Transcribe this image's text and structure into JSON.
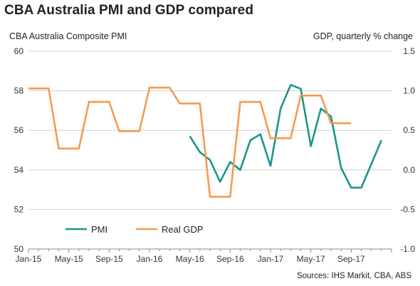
{
  "title": "CBA Australia PMI and GDP compared",
  "left_axis_label": "CBA Australia Composite  PMI",
  "right_axis_label": "GDP, quarterly % change",
  "source": "Sources: IHS Markit, CBA, ABS",
  "colors": {
    "pmi": "#1a968a",
    "gdp": "#f49b50",
    "grid": "#d0d0d0",
    "axis": "#888888"
  },
  "chart_data": {
    "type": "line",
    "x_tick_labels": [
      "Jan-15",
      "May-15",
      "Sep-15",
      "Jan-16",
      "May-16",
      "Sep-16",
      "Jan-17",
      "May-17",
      "Sep-17"
    ],
    "x_range": [
      "Jan-15",
      "Dec-17"
    ],
    "left_axis": {
      "ylim": [
        50,
        60
      ],
      "ticks": [
        "50",
        "52",
        "54",
        "56",
        "58",
        "60"
      ]
    },
    "right_axis": {
      "ylim": [
        -1.0,
        1.5
      ],
      "ticks": [
        "-1.0",
        "-0.5",
        "0.0",
        "0.5",
        "1.0",
        "1.5"
      ]
    },
    "grid": "horizontal",
    "legend_position": "bottom-left",
    "series": [
      {
        "name": "PMI",
        "axis": "left",
        "points": [
          [
            "May-16",
            55.7
          ],
          [
            "Jun-16",
            54.9
          ],
          [
            "Jul-16",
            54.5
          ],
          [
            "Aug-16",
            53.4
          ],
          [
            "Sep-16",
            54.4
          ],
          [
            "Oct-16",
            54.0
          ],
          [
            "Nov-16",
            55.5
          ],
          [
            "Dec-16",
            55.8
          ],
          [
            "Jan-17",
            54.2
          ],
          [
            "Feb-17",
            57.1
          ],
          [
            "Mar-17",
            58.3
          ],
          [
            "Apr-17",
            58.1
          ],
          [
            "May-17",
            55.2
          ],
          [
            "Jun-17",
            57.1
          ],
          [
            "Jul-17",
            56.7
          ],
          [
            "Aug-17",
            54.1
          ],
          [
            "Sep-17",
            53.1
          ],
          [
            "Oct-17",
            53.1
          ],
          [
            "Nov-17",
            54.3
          ],
          [
            "Dec-17",
            55.5
          ]
        ]
      },
      {
        "name": "Real GDP",
        "axis": "right",
        "steps": [
          [
            "Jan-15",
            "Mar-15",
            1.03
          ],
          [
            "Apr-15",
            "Jun-15",
            0.27
          ],
          [
            "Jul-15",
            "Sep-15",
            0.86
          ],
          [
            "Oct-15",
            "Dec-15",
            0.49
          ],
          [
            "Jan-16",
            "Mar-16",
            1.04
          ],
          [
            "Apr-16",
            "Jun-16",
            0.84
          ],
          [
            "Jul-16",
            "Sep-16",
            -0.34
          ],
          [
            "Oct-16",
            "Dec-16",
            0.86
          ],
          [
            "Jan-17",
            "Mar-17",
            0.4
          ],
          [
            "Apr-17",
            "Jun-17",
            0.94
          ],
          [
            "Jul-17",
            "Sep-17",
            0.59
          ]
        ]
      }
    ]
  }
}
